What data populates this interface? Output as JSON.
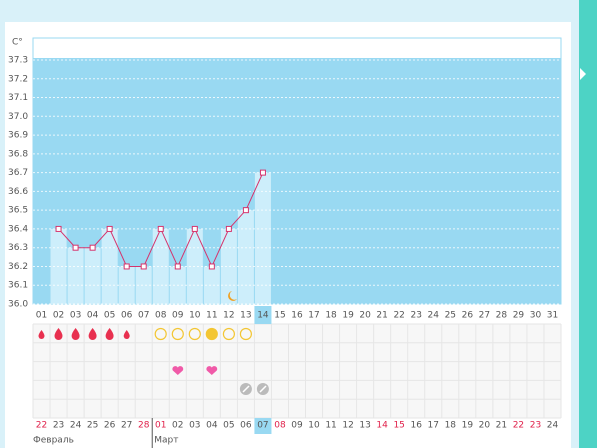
{
  "chart_data": {
    "type": "line",
    "y_label": "C°",
    "categories": [
      "01",
      "02",
      "03",
      "04",
      "05",
      "06",
      "07",
      "08",
      "09",
      "10",
      "11",
      "12",
      "13",
      "14",
      "15",
      "16",
      "17",
      "18",
      "19",
      "20",
      "21",
      "22",
      "23",
      "24",
      "25",
      "26",
      "27",
      "28",
      "29",
      "30",
      "31"
    ],
    "values": [
      null,
      36.4,
      36.3,
      36.3,
      36.4,
      36.2,
      36.2,
      36.4,
      36.2,
      36.4,
      36.2,
      36.4,
      36.5,
      36.7,
      null,
      null,
      null,
      null,
      null,
      null,
      null,
      null,
      null,
      null,
      null,
      null,
      null,
      null,
      null,
      null,
      null
    ],
    "color": "#d6336c",
    "ylim": [
      36.0,
      37.3
    ],
    "yticks": [
      {
        "value": 36.0,
        "label": "36.0"
      },
      36.1,
      36.2,
      36.3,
      36.4,
      36.5,
      36.6,
      36.7,
      36.8,
      36.9,
      {
        "value": 37.0,
        "label": "37.0"
      },
      37.1,
      37.2,
      37.3
    ],
    "grid": true,
    "selected_day": 13,
    "dates": [
      "22",
      "23",
      "24",
      "25",
      "26",
      "27",
      "28",
      "01",
      "02",
      "03",
      "04",
      "05",
      "06",
      "07",
      "08",
      "09",
      "10",
      "11",
      "12",
      "13",
      "14",
      "15",
      "16",
      "17",
      "18",
      "19",
      "20",
      "21",
      "22",
      "23",
      "24"
    ],
    "red_dates": [
      0,
      6,
      7,
      14,
      20,
      21,
      28,
      29
    ],
    "months": [
      "Февраль",
      "Март"
    ],
    "month_starts": [
      0,
      7
    ]
  }
}
